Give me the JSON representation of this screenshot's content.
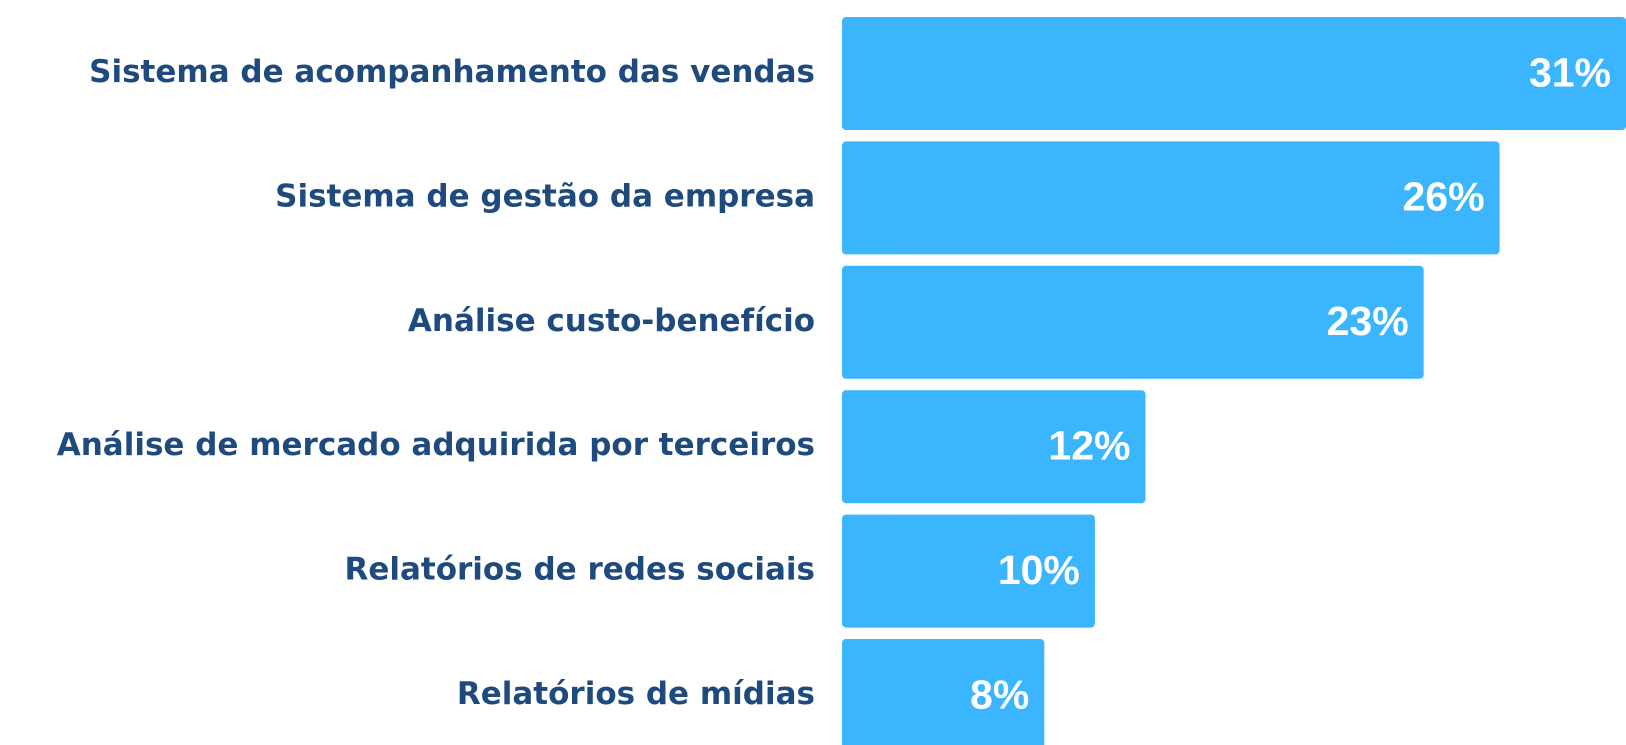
{
  "chart_data": {
    "type": "barh",
    "categories": [
      "Sistema de acompanhamento das vendas",
      "Sistema de gestão da empresa",
      "Análise custo-benefício",
      "Análise de mercado adquirida por terceiros",
      "Relatórios de redes sociais",
      "Relatórios de mídias"
    ],
    "values": [
      31,
      26,
      23,
      12,
      10,
      8
    ],
    "value_labels": [
      "31%",
      "26%",
      "23%",
      "12%",
      "10%",
      "8%"
    ],
    "color": "#3bb6fe"
  }
}
